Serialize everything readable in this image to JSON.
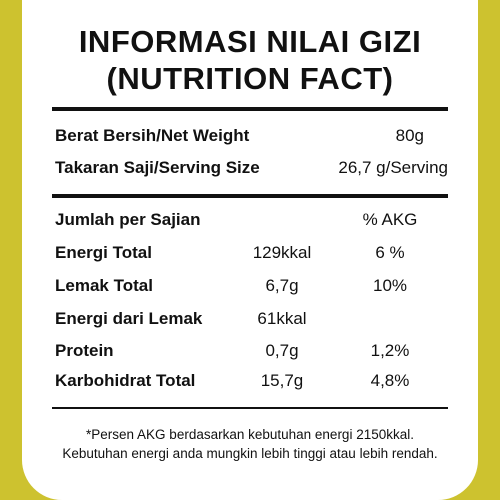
{
  "title": {
    "line1": "INFORMASI NILAI GIZI",
    "line2": "(NUTRITION FACT)"
  },
  "summary": [
    {
      "label": "Berat Bersih/Net Weight",
      "value": "80g"
    },
    {
      "label": "Takaran Saji/Serving Size",
      "value": "26,7 g/Serving"
    }
  ],
  "table": {
    "header_label": "Jumlah per Sajian",
    "header_akg": "% AKG",
    "rows": [
      {
        "label": "Energi Total",
        "amount": "129kkal",
        "akg": "6 %"
      },
      {
        "label": "Lemak Total",
        "amount": "6,7g",
        "akg": "10%"
      },
      {
        "label": "Energi dari Lemak",
        "amount": "61kkal",
        "akg": ""
      },
      {
        "label": "Protein",
        "amount": "0,7g",
        "akg": "1,2%"
      },
      {
        "label": "Karbohidrat Total",
        "amount": "15,7g",
        "akg": "4,8%"
      }
    ]
  },
  "footnote": {
    "line1": "*Persen AKG berdasarkan kebutuhan energi 2150kkal.",
    "line2": "Kebutuhan energi anda mungkin lebih tinggi atau lebih rendah."
  },
  "colors": {
    "border": "#cdc22f",
    "panel": "#ffffff",
    "text": "#111111"
  }
}
